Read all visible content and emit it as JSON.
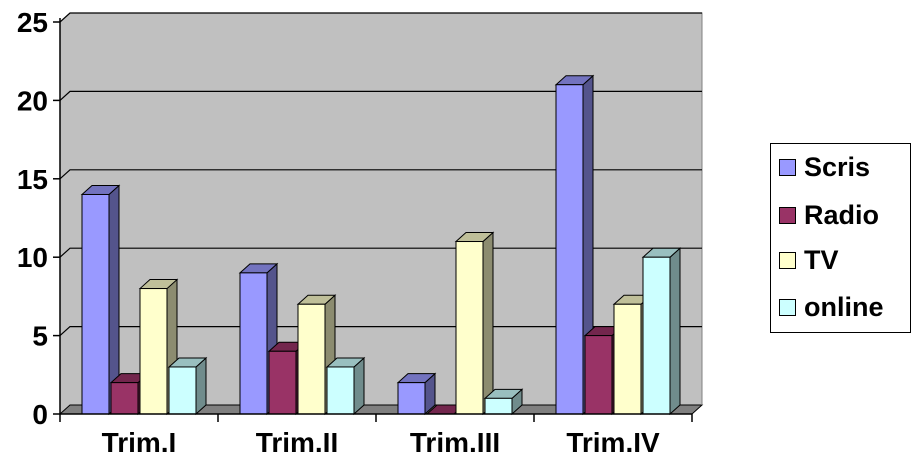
{
  "chart_data": {
    "type": "bar",
    "categories": [
      "Trim.I",
      "Trim.II",
      "Trim.III",
      "Trim.IV"
    ],
    "series": [
      {
        "name": "Scris",
        "values": [
          14,
          9,
          2,
          21
        ],
        "color": "#9999ff"
      },
      {
        "name": "Radio",
        "values": [
          2,
          4,
          0,
          5
        ],
        "color": "#993366"
      },
      {
        "name": "TV",
        "values": [
          8,
          7,
          11,
          7
        ],
        "color": "#ffffcc"
      },
      {
        "name": "online",
        "values": [
          3,
          3,
          1,
          10
        ],
        "color": "#ccffff"
      }
    ],
    "ylim": [
      0,
      25
    ],
    "yticks": [
      "0",
      "5",
      "10",
      "15",
      "20",
      "25"
    ],
    "grid": true,
    "legend_position": "right",
    "plot_background": "#c0c0c0",
    "three_d": true
  }
}
